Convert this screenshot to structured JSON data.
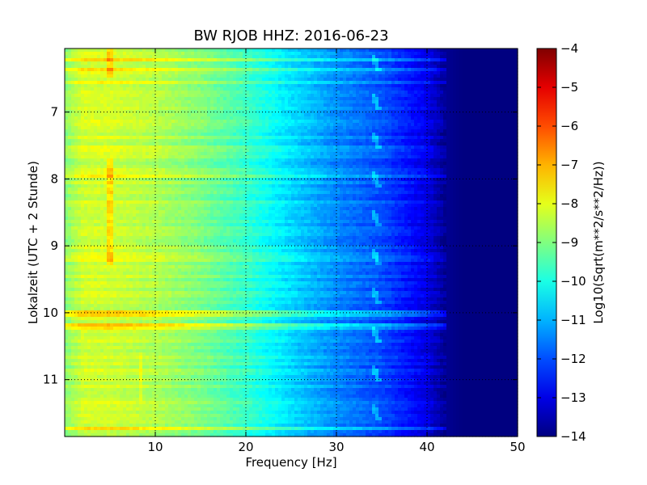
{
  "chart_data": {
    "type": "heatmap",
    "title": "BW RJOB HHZ: 2016-06-23",
    "xlabel": "Frequency [Hz]",
    "ylabel": "Lokalzeit (UTC + 2 Stunde)",
    "xlim": [
      0,
      50
    ],
    "ylim": [
      6.05,
      11.85
    ],
    "y_inverted": true,
    "x_ticks": [
      10,
      20,
      30,
      40,
      50
    ],
    "y_ticks": [
      7,
      8,
      9,
      10,
      11
    ],
    "grid": true,
    "colormap": "jet",
    "colorbar": {
      "label": "Log10(Sqrt(m**2/s**2/Hz))",
      "min": -14,
      "max": -4,
      "ticks": [
        -4,
        -5,
        -6,
        -7,
        -8,
        -9,
        -10,
        -11,
        -12,
        -13,
        -14
      ]
    },
    "frequency_profile": {
      "frequencies_hz": [
        0,
        2,
        5,
        10,
        15,
        20,
        25,
        30,
        35,
        38,
        40,
        42,
        44,
        50
      ],
      "log10_amplitude": [
        -8.9,
        -8.2,
        -8.2,
        -8.5,
        -9.0,
        -9.7,
        -10.6,
        -11.4,
        -12.0,
        -12.6,
        -13.0,
        -13.8,
        -14.0,
        -14.0
      ]
    },
    "horizontal_bands": [
      {
        "time": 6.22,
        "offset": 0.7
      },
      {
        "time": 6.36,
        "offset": 0.9
      },
      {
        "time": 6.55,
        "offset": 0.4
      },
      {
        "time": 7.55,
        "offset": 0.4
      },
      {
        "time": 7.95,
        "offset": 0.4
      },
      {
        "time": 8.35,
        "offset": 0.4
      },
      {
        "time": 9.2,
        "offset": 0.4
      },
      {
        "time": 10.0,
        "offset": 0.9
      },
      {
        "time": 10.22,
        "offset": 0.9
      },
      {
        "time": 11.72,
        "offset": 0.8
      }
    ],
    "vertical_lines": [
      {
        "frequency": 5.0,
        "time_start": 6.05,
        "time_end": 6.5,
        "offset": 0.8
      },
      {
        "frequency": 5.0,
        "time_start": 7.7,
        "time_end": 9.3,
        "offset": 0.8
      },
      {
        "frequency": 8.3,
        "time_start": 10.6,
        "time_end": 11.3,
        "offset": 0.5
      }
    ],
    "curved_features": [
      {
        "frequency": 34.5,
        "time_start": 6.05,
        "time_end": 11.85,
        "period": 0.58
      }
    ]
  }
}
